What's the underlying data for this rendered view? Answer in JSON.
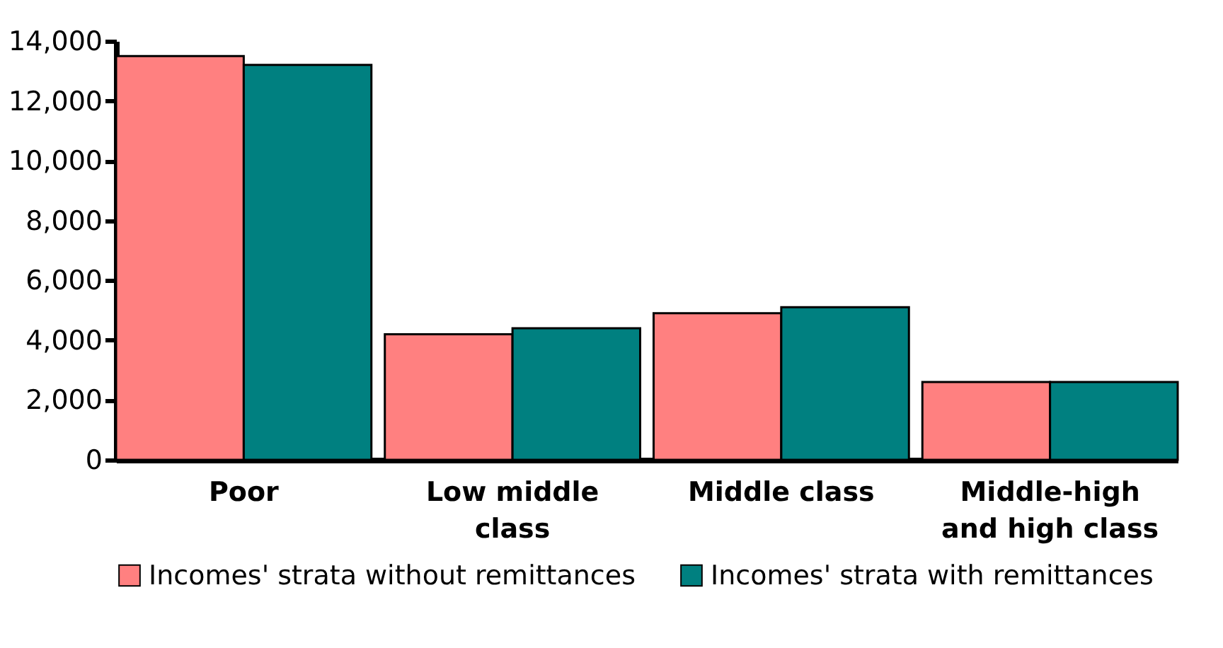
{
  "chart_data": {
    "type": "bar",
    "categories": [
      "Poor",
      "Low middle class",
      "Middle class",
      "Middle-high and high class"
    ],
    "series": [
      {
        "name": "Incomes' strata without remittances",
        "color": "#ff8080",
        "values": [
          13500,
          4200,
          4900,
          2600
        ]
      },
      {
        "name": "Incomes' strata with remittances",
        "color": "#008080",
        "values": [
          13200,
          4400,
          5100,
          2600
        ]
      }
    ],
    "ylim": [
      0,
      14000
    ],
    "yticks": [
      0,
      {
        "value": 2000,
        "label": "2,000"
      },
      {
        "value": 4000,
        "label": "4,000"
      },
      {
        "value": 6000,
        "label": "6,000"
      },
      {
        "value": 8000,
        "label": "8,000"
      },
      {
        "value": 10000,
        "label": "10,000"
      },
      {
        "value": 12000,
        "label": "12,000"
      },
      {
        "value": 14000,
        "label": "14,000"
      }
    ],
    "grid": false,
    "legend": "bottom"
  }
}
